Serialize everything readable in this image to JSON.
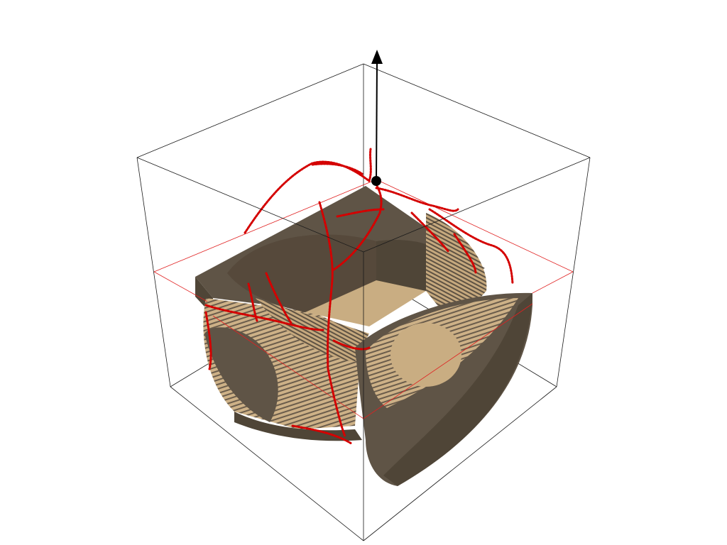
{
  "scene": {
    "background": "#ffffff",
    "colors": {
      "bounding_box": "#1a1a1a",
      "slice_plane": "#e02020",
      "dark_face": "#5f5446",
      "darker_face": "#4f4537",
      "light_face": "#c9ad82",
      "mid_face": "#a99070",
      "red_points": "#d40000",
      "axis_arrow": "#000000"
    },
    "icons": {
      "axis": "up-arrow-icon",
      "pivot": "pivot-point-icon"
    }
  }
}
